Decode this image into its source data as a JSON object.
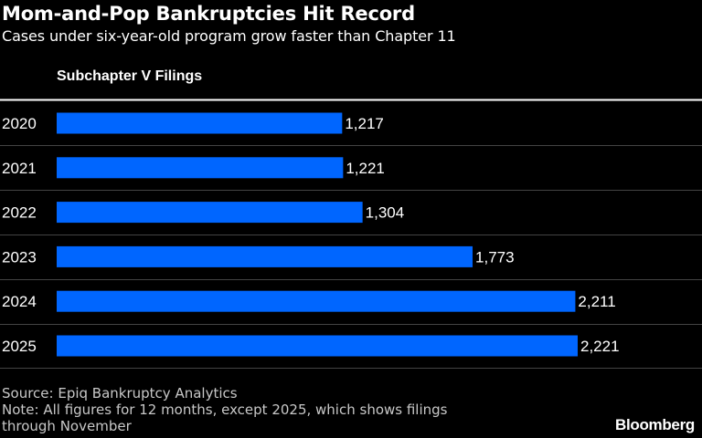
{
  "title": "Mom-and-Pop Bankruptcies Hit Record",
  "subtitle": "Cases under six-year-old program grow faster than Chapter 11",
  "footer": {
    "source": "Source: Epiq Bankruptcy Analytics",
    "note_line1": "Note: All figures for 12 months, except 2025, which shows filings",
    "note_line2": "through November"
  },
  "brand": "Bloomberg",
  "colors": {
    "bar": "#0066ff",
    "background": "#000000",
    "text": "#ffffff",
    "gridline": "#444444"
  },
  "chart_data": {
    "type": "bar",
    "orientation": "horizontal",
    "title": "Subchapter V Filings",
    "categories": [
      "2020",
      "2021",
      "2022",
      "2023",
      "2024",
      "2025"
    ],
    "values": [
      1217,
      1221,
      1304,
      1773,
      2211,
      2221
    ],
    "value_labels": [
      "1,217",
      "1,221",
      "1,304",
      "1,773",
      "2,211",
      "2,221"
    ],
    "xlim": [
      0,
      2221
    ],
    "grid": false,
    "legend": "none"
  }
}
